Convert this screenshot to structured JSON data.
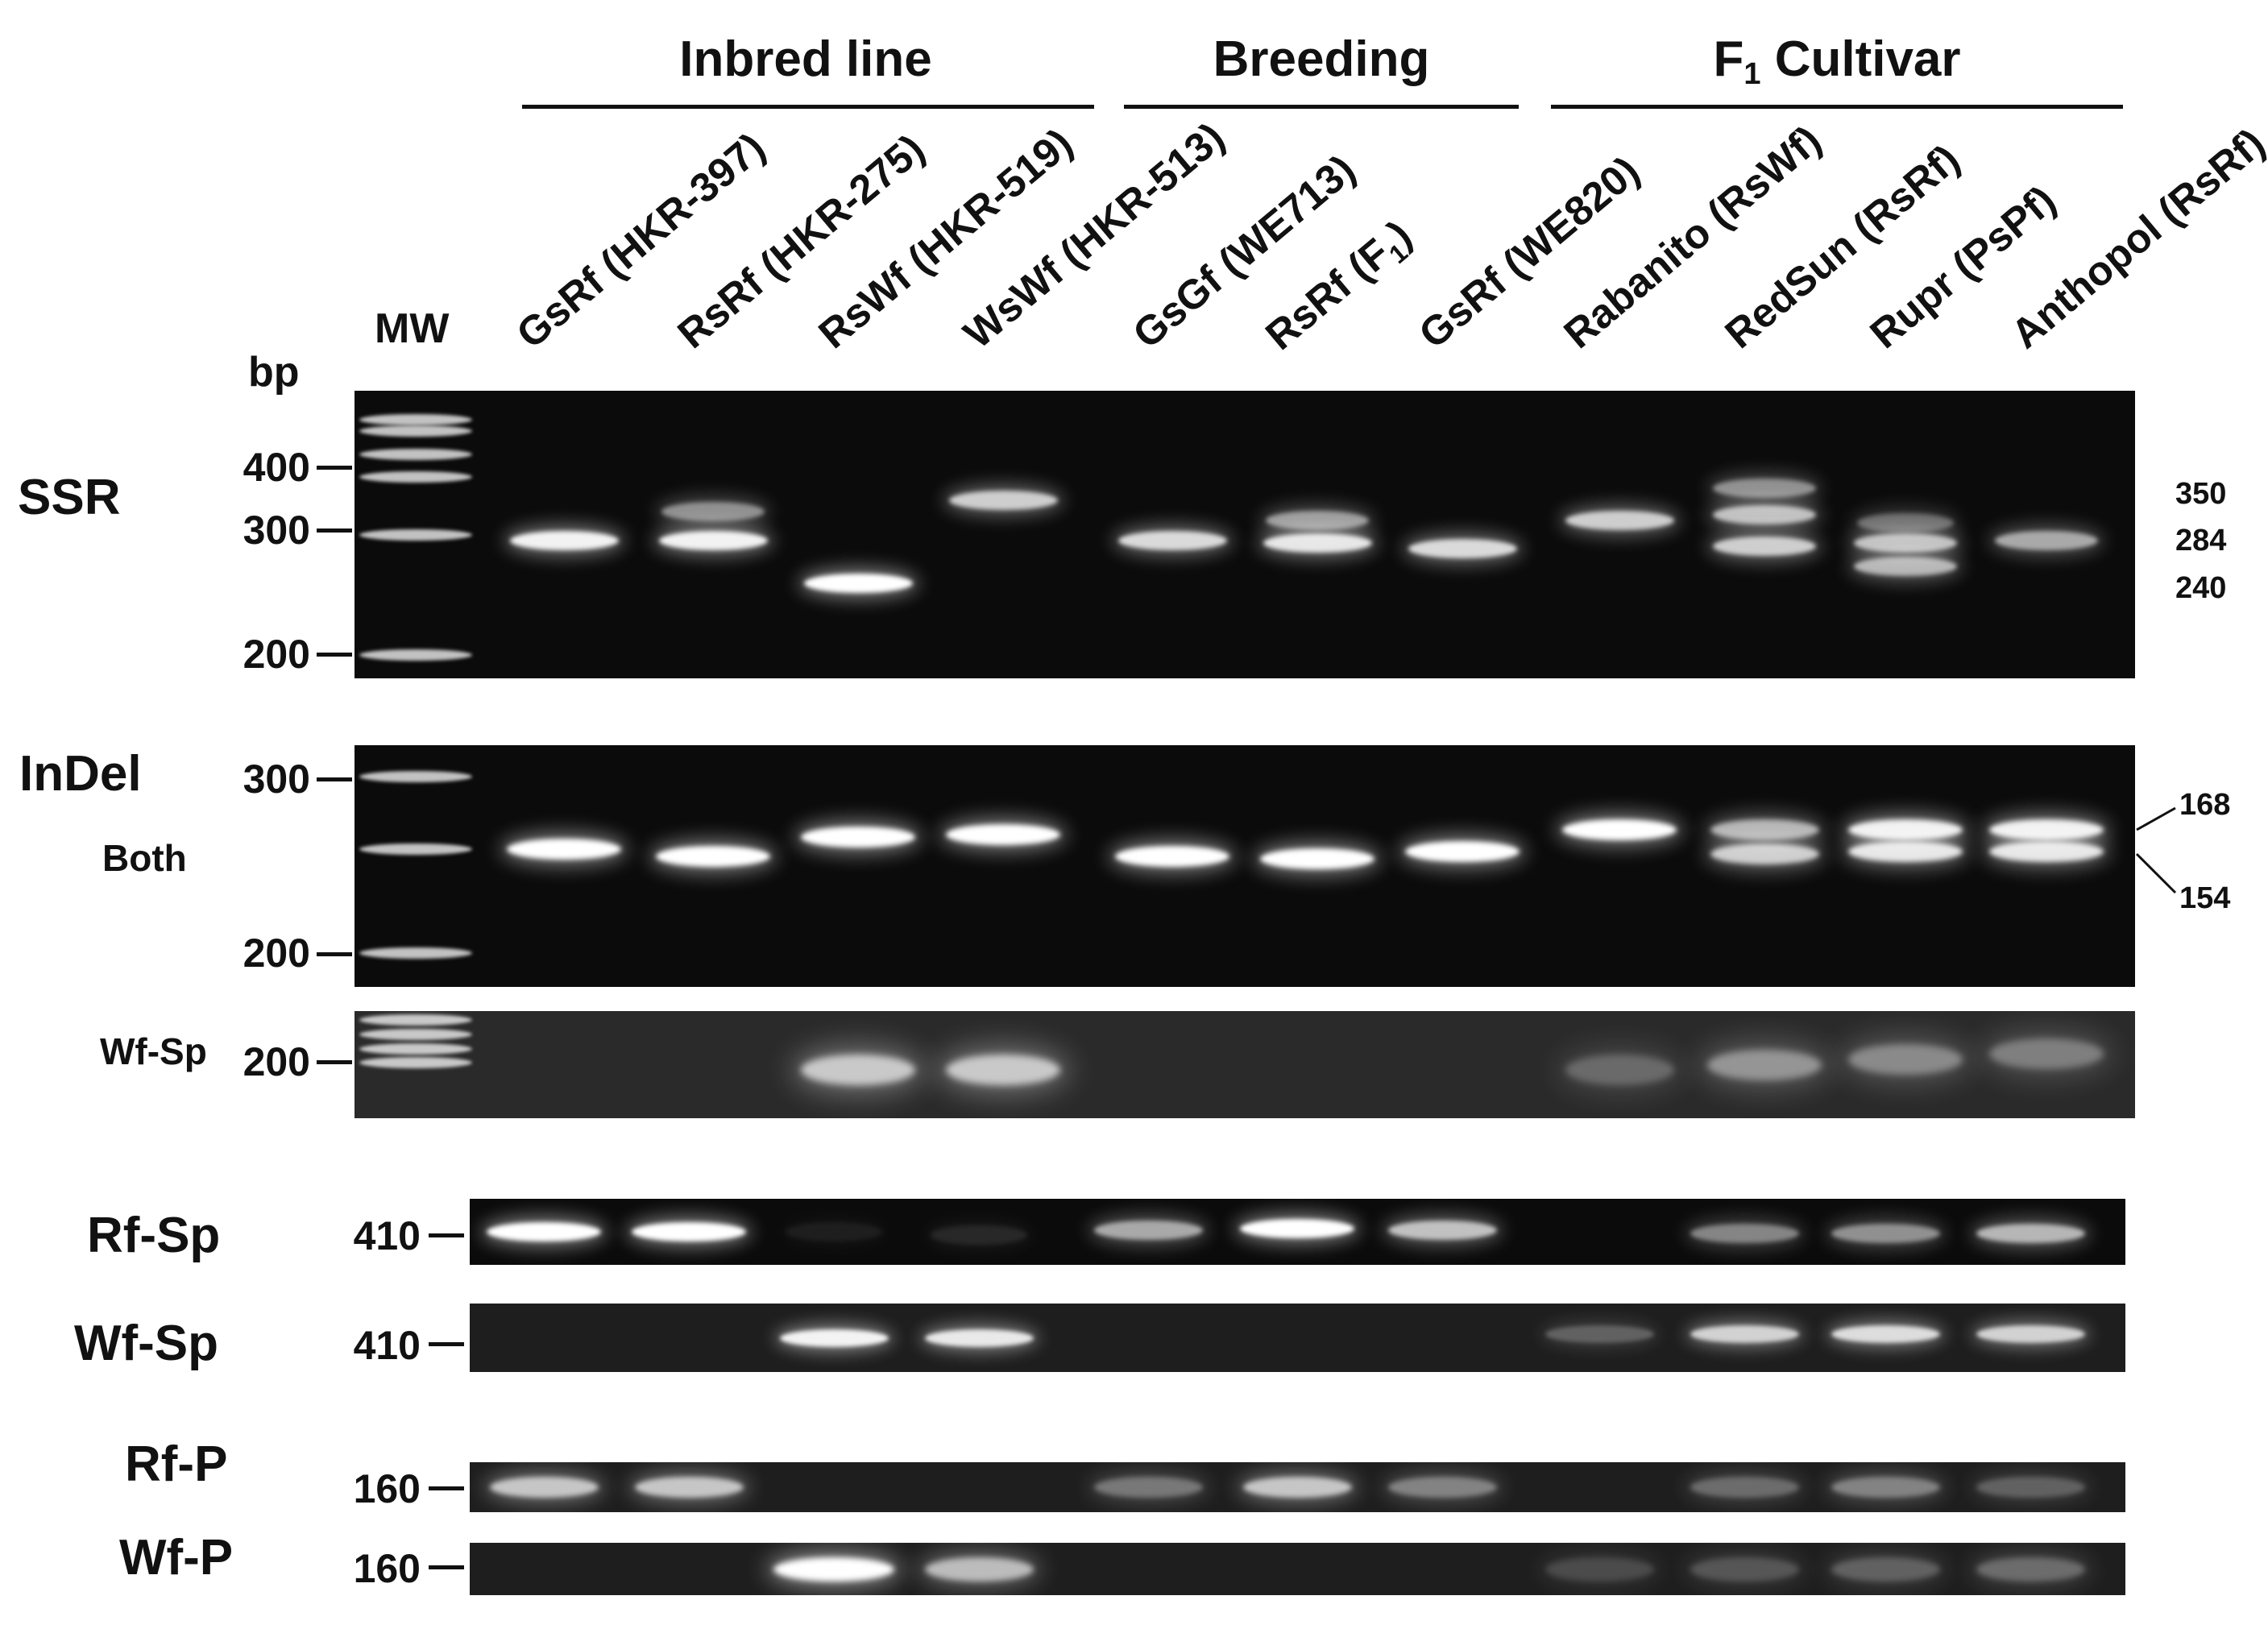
{
  "groups": {
    "inbred": "Inbred line",
    "breeding": "Breeding",
    "f1_main": "F",
    "f1_sub": "1",
    "f1_rest": " Cultivar"
  },
  "mw_label": "MW",
  "bp_label": "bp",
  "lanes": [
    {
      "text": "GsRf (HKR-397)",
      "sub": "",
      "tail": ""
    },
    {
      "text": "RsRf (HKR-275)",
      "sub": "",
      "tail": ""
    },
    {
      "text": "RsWf (HKR-519)",
      "sub": "",
      "tail": ""
    },
    {
      "text": "WsWf (HKR-513)",
      "sub": "",
      "tail": ""
    },
    {
      "text": "GsGf (WE713)",
      "sub": "",
      "tail": ""
    },
    {
      "text": "RsRf (F",
      "sub": "1",
      "tail": ")"
    },
    {
      "text": "GsRf (WE820)",
      "sub": "",
      "tail": ""
    },
    {
      "text": "Rabanito (RsWf)",
      "sub": "",
      "tail": ""
    },
    {
      "text": "RedSun (RsRf)",
      "sub": "",
      "tail": ""
    },
    {
      "text": "Rupr (PsPf)",
      "sub": "",
      "tail": ""
    },
    {
      "text": "Anthopol (RsRf)",
      "sub": "",
      "tail": ""
    }
  ],
  "panels": {
    "ssr": {
      "label": "SSR",
      "ticks": [
        "400",
        "300",
        "200"
      ],
      "right_labels": [
        "350",
        "284",
        "240"
      ],
      "bands": [
        [
          {
            "y": 0.52,
            "i": 0.95,
            "w": 0.9
          }
        ],
        [
          {
            "y": 0.52,
            "i": 0.95,
            "w": 0.9
          },
          {
            "y": 0.42,
            "i": 0.55,
            "w": 0.85
          }
        ],
        [
          {
            "y": 0.67,
            "i": 1.0,
            "w": 0.9
          }
        ],
        [
          {
            "y": 0.38,
            "i": 0.8,
            "w": 0.9
          }
        ],
        [
          {
            "y": 0.52,
            "i": 0.85,
            "w": 0.9
          }
        ],
        [
          {
            "y": 0.53,
            "i": 0.9,
            "w": 0.9
          },
          {
            "y": 0.45,
            "i": 0.6,
            "w": 0.85
          }
        ],
        [
          {
            "y": 0.55,
            "i": 0.85,
            "w": 0.9
          }
        ],
        [
          {
            "y": 0.45,
            "i": 0.8,
            "w": 0.9
          }
        ],
        [
          {
            "y": 0.34,
            "i": 0.55,
            "w": 0.85
          },
          {
            "y": 0.43,
            "i": 0.75,
            "w": 0.85
          },
          {
            "y": 0.54,
            "i": 0.8,
            "w": 0.85
          }
        ],
        [
          {
            "y": 0.53,
            "i": 0.75,
            "w": 0.85
          },
          {
            "y": 0.61,
            "i": 0.7,
            "w": 0.85
          },
          {
            "y": 0.46,
            "i": 0.4,
            "w": 0.8
          }
        ],
        [
          {
            "y": 0.52,
            "i": 0.65,
            "w": 0.85
          }
        ]
      ]
    },
    "indel": {
      "label": "InDel",
      "sublabel": "Both",
      "ticks": [
        "300",
        "200"
      ],
      "right_labels": [
        "168",
        "154"
      ],
      "bands": [
        [
          {
            "y": 0.43,
            "i": 1.0,
            "w": 0.95
          }
        ],
        [
          {
            "y": 0.46,
            "i": 1.0,
            "w": 0.95
          }
        ],
        [
          {
            "y": 0.38,
            "i": 1.0,
            "w": 0.95
          }
        ],
        [
          {
            "y": 0.37,
            "i": 1.0,
            "w": 0.95
          }
        ],
        [
          {
            "y": 0.46,
            "i": 1.0,
            "w": 0.95
          }
        ],
        [
          {
            "y": 0.47,
            "i": 1.0,
            "w": 0.95
          }
        ],
        [
          {
            "y": 0.44,
            "i": 1.0,
            "w": 0.95
          }
        ],
        [
          {
            "y": 0.35,
            "i": 1.0,
            "w": 0.95
          }
        ],
        [
          {
            "y": 0.35,
            "i": 0.7,
            "w": 0.9
          },
          {
            "y": 0.45,
            "i": 0.8,
            "w": 0.9
          }
        ],
        [
          {
            "y": 0.35,
            "i": 0.95,
            "w": 0.95
          },
          {
            "y": 0.44,
            "i": 0.9,
            "w": 0.95
          }
        ],
        [
          {
            "y": 0.35,
            "i": 0.95,
            "w": 0.95
          },
          {
            "y": 0.44,
            "i": 0.9,
            "w": 0.95
          }
        ]
      ]
    },
    "wf_sp_top": {
      "label": "Wf-Sp",
      "ticks": [
        "200"
      ],
      "bands": [
        [],
        [],
        [
          {
            "y": 0.55,
            "i": 0.75,
            "w": 0.95
          }
        ],
        [
          {
            "y": 0.55,
            "i": 0.75,
            "w": 0.95
          }
        ],
        [],
        [],
        [],
        [
          {
            "y": 0.55,
            "i": 0.3,
            "w": 0.9
          }
        ],
        [
          {
            "y": 0.5,
            "i": 0.5,
            "w": 0.95
          }
        ],
        [
          {
            "y": 0.45,
            "i": 0.45,
            "w": 0.95
          }
        ],
        [
          {
            "y": 0.4,
            "i": 0.4,
            "w": 0.95
          }
        ]
      ]
    },
    "rf_sp": {
      "label": "Rf-Sp",
      "ticks": [
        "410"
      ],
      "bands": [
        [
          {
            "y": 0.5,
            "i": 1.0,
            "w": 0.95
          }
        ],
        [
          {
            "y": 0.5,
            "i": 1.0,
            "w": 0.95
          }
        ],
        [
          {
            "y": 0.5,
            "i": 0.08,
            "w": 0.8
          }
        ],
        [
          {
            "y": 0.55,
            "i": 0.12,
            "w": 0.8
          }
        ],
        [
          {
            "y": 0.48,
            "i": 0.65,
            "w": 0.9
          }
        ],
        [
          {
            "y": 0.45,
            "i": 1.0,
            "w": 0.95
          }
        ],
        [
          {
            "y": 0.48,
            "i": 0.75,
            "w": 0.9
          }
        ],
        [],
        [
          {
            "y": 0.52,
            "i": 0.5,
            "w": 0.9
          }
        ],
        [
          {
            "y": 0.52,
            "i": 0.55,
            "w": 0.9
          }
        ],
        [
          {
            "y": 0.52,
            "i": 0.7,
            "w": 0.9
          }
        ]
      ]
    },
    "wf_sp": {
      "label": "Wf-Sp",
      "ticks": [
        "410"
      ],
      "bands": [
        [],
        [],
        [
          {
            "y": 0.5,
            "i": 0.95,
            "w": 0.9
          }
        ],
        [
          {
            "y": 0.5,
            "i": 0.9,
            "w": 0.9
          }
        ],
        [],
        [],
        [],
        [
          {
            "y": 0.45,
            "i": 0.3,
            "w": 0.9
          }
        ],
        [
          {
            "y": 0.45,
            "i": 0.8,
            "w": 0.9
          }
        ],
        [
          {
            "y": 0.45,
            "i": 0.85,
            "w": 0.9
          }
        ],
        [
          {
            "y": 0.45,
            "i": 0.8,
            "w": 0.9
          }
        ]
      ]
    },
    "rf_p": {
      "label": "Rf-P",
      "ticks": [
        "160"
      ],
      "bands": [
        [
          {
            "y": 0.5,
            "i": 0.75,
            "w": 0.9
          }
        ],
        [
          {
            "y": 0.5,
            "i": 0.75,
            "w": 0.9
          }
        ],
        [],
        [],
        [
          {
            "y": 0.5,
            "i": 0.4,
            "w": 0.9
          }
        ],
        [
          {
            "y": 0.5,
            "i": 0.75,
            "w": 0.9
          }
        ],
        [
          {
            "y": 0.5,
            "i": 0.45,
            "w": 0.9
          }
        ],
        [],
        [
          {
            "y": 0.5,
            "i": 0.35,
            "w": 0.9
          }
        ],
        [
          {
            "y": 0.5,
            "i": 0.45,
            "w": 0.9
          }
        ],
        [
          {
            "y": 0.5,
            "i": 0.3,
            "w": 0.9
          }
        ]
      ]
    },
    "wf_p": {
      "label": "Wf-P",
      "ticks": [
        "160"
      ],
      "bands": [
        [],
        [],
        [
          {
            "y": 0.5,
            "i": 1.0,
            "w": 1.0
          }
        ],
        [
          {
            "y": 0.5,
            "i": 0.7,
            "w": 0.9
          }
        ],
        [],
        [],
        [],
        [
          {
            "y": 0.5,
            "i": 0.2,
            "w": 0.9
          }
        ],
        [
          {
            "y": 0.5,
            "i": 0.25,
            "w": 0.9
          }
        ],
        [
          {
            "y": 0.5,
            "i": 0.3,
            "w": 0.9
          }
        ],
        [
          {
            "y": 0.5,
            "i": 0.35,
            "w": 0.9
          }
        ]
      ]
    }
  },
  "ladder": {
    "ssr": [
      0.1,
      0.14,
      0.22,
      0.3,
      0.5,
      0.92
    ],
    "indel": [
      0.13,
      0.43,
      0.86
    ],
    "wf_sp_top": [
      0.08,
      0.22,
      0.35,
      0.48
    ]
  }
}
